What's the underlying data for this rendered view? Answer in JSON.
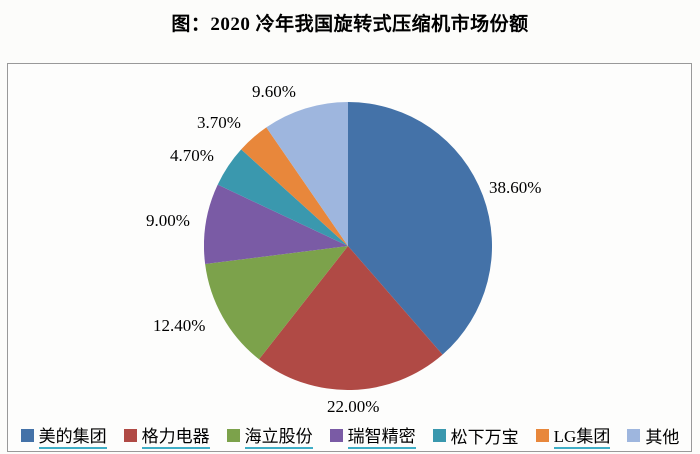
{
  "page": {
    "title": "图：2020 冷年我国旋转式压缩机市场份额"
  },
  "chart_data": {
    "type": "pie",
    "title": "图：2020 冷年我国旋转式压缩机市场份额",
    "categories": [
      "美的集团",
      "格力电器",
      "海立股份",
      "瑞智精密",
      "松下万宝",
      "LG集团",
      "其他"
    ],
    "values": [
      38.6,
      22.0,
      12.4,
      9.0,
      4.7,
      3.7,
      9.6
    ],
    "labels": [
      "38.60%",
      "22.00%",
      "12.40%",
      "9.00%",
      "4.70%",
      "3.70%",
      "9.60%"
    ],
    "colors": [
      "#4472A8",
      "#B04A45",
      "#7CA24B",
      "#7A5BA5",
      "#3A98AE",
      "#E8873B",
      "#9EB6DE"
    ],
    "start_angle_deg": 0,
    "direction": "clockwise",
    "legend_position": "bottom",
    "legend_underline": [
      true,
      true,
      true,
      true,
      false,
      true,
      false
    ],
    "underline_color": "#3FAEC6"
  }
}
